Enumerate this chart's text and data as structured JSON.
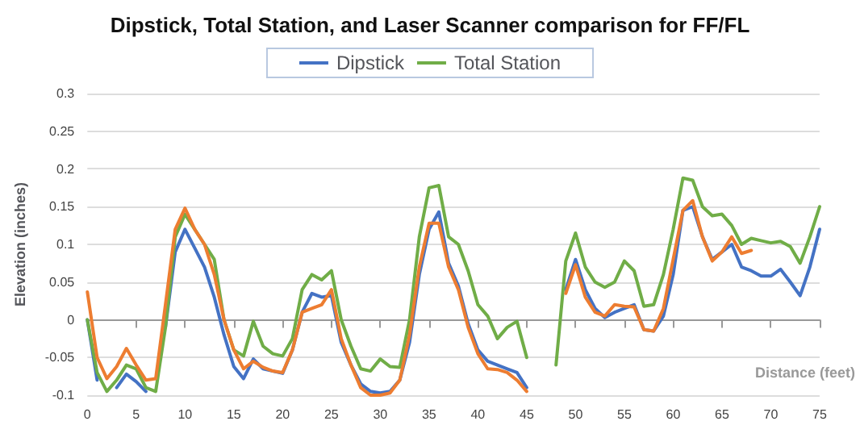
{
  "chart_data": {
    "type": "line",
    "title": "Dipstick, Total Station, and Laser Scanner comparison for FF/FL",
    "xlabel": "Distance (feet)",
    "ylabel": "Elevation (inches)",
    "x": [
      0,
      1,
      2,
      3,
      4,
      5,
      6,
      7,
      8,
      9,
      10,
      11,
      12,
      13,
      14,
      15,
      16,
      17,
      18,
      19,
      20,
      21,
      22,
      23,
      24,
      25,
      26,
      27,
      28,
      29,
      30,
      31,
      32,
      33,
      34,
      35,
      36,
      37,
      38,
      39,
      40,
      41,
      42,
      43,
      44,
      45,
      46,
      47,
      48,
      49,
      50,
      51,
      52,
      53,
      54,
      55,
      56,
      57,
      58,
      59,
      60,
      61,
      62,
      63,
      64,
      65,
      66,
      67,
      68,
      69,
      70,
      71,
      72,
      73,
      74,
      75
    ],
    "series": [
      {
        "name": "Dipstick",
        "color": "#4472c4",
        "values": [
          0,
          -0.08,
          null,
          -0.09,
          -0.072,
          -0.082,
          -0.095,
          null,
          -0.01,
          0.09,
          0.12,
          0.095,
          0.07,
          0.03,
          -0.02,
          -0.062,
          -0.078,
          -0.052,
          -0.065,
          -0.068,
          -0.071,
          -0.04,
          0.01,
          0.035,
          0.03,
          0.032,
          -0.03,
          -0.06,
          -0.085,
          -0.095,
          -0.097,
          -0.095,
          -0.08,
          -0.03,
          0.06,
          0.12,
          0.143,
          0.075,
          0.045,
          -0.005,
          -0.04,
          -0.055,
          -0.06,
          -0.065,
          -0.07,
          -0.09,
          null,
          null,
          null,
          0.04,
          0.08,
          0.04,
          0.015,
          0.003,
          0.01,
          0.015,
          0.02,
          -0.013,
          -0.015,
          0.005,
          0.06,
          0.145,
          0.15,
          0.11,
          0.08,
          0.09,
          0.1,
          0.07,
          0.065,
          0.058,
          0.058,
          0.067,
          0.05,
          0.032,
          0.07,
          0.12
        ]
      },
      {
        "name": "Total Station",
        "color": "#70ad47",
        "values": [
          0,
          -0.07,
          -0.095,
          -0.08,
          -0.06,
          -0.065,
          -0.09,
          -0.095,
          -0.01,
          0.11,
          0.14,
          0.12,
          0.1,
          0.08,
          0,
          -0.04,
          -0.048,
          -0.002,
          -0.035,
          -0.045,
          -0.048,
          -0.025,
          0.04,
          0.06,
          0.053,
          0.065,
          0,
          -0.035,
          -0.065,
          -0.068,
          -0.052,
          -0.062,
          -0.063,
          0,
          0.11,
          0.175,
          0.178,
          0.11,
          0.1,
          0.065,
          0.02,
          0.005,
          -0.025,
          -0.01,
          -0.002,
          -0.05,
          null,
          null,
          -0.06,
          0.078,
          0.115,
          0.07,
          0.05,
          0.043,
          0.05,
          0.078,
          0.065,
          0.018,
          0.02,
          0.06,
          0.12,
          0.188,
          0.185,
          0.15,
          0.138,
          0.14,
          0.125,
          0.1,
          0.108,
          0.105,
          0.102,
          0.104,
          0.097,
          0.075,
          0.11,
          0.15
        ]
      },
      {
        "color": "#ed7d31",
        "values": [
          0.037,
          -0.05,
          -0.078,
          -0.062,
          -0.038,
          -0.06,
          -0.08,
          -0.078,
          0.02,
          0.12,
          0.148,
          0.12,
          0.1,
          0.06,
          0,
          -0.04,
          -0.065,
          -0.055,
          -0.063,
          -0.068,
          -0.07,
          -0.04,
          0.01,
          0.015,
          0.02,
          0.04,
          -0.025,
          -0.06,
          -0.09,
          -0.1,
          -0.1,
          -0.097,
          -0.08,
          -0.02,
          0.07,
          0.128,
          0.128,
          0.07,
          0.04,
          -0.01,
          -0.045,
          -0.065,
          -0.066,
          -0.07,
          -0.08,
          -0.095,
          null,
          null,
          null,
          0.035,
          0.073,
          0.03,
          0.01,
          0.005,
          0.02,
          0.018,
          0.017,
          -0.013,
          -0.015,
          0.015,
          0.08,
          0.145,
          0.158,
          0.11,
          0.078,
          0.09,
          0.11,
          0.088,
          0.092,
          null,
          null,
          null,
          null,
          null,
          null,
          null
        ]
      }
    ],
    "xlim": [
      0,
      75
    ],
    "xticks": [
      0,
      5,
      10,
      15,
      20,
      25,
      30,
      35,
      40,
      45,
      50,
      55,
      60,
      65,
      70,
      75
    ],
    "ylim": [
      -0.1,
      0.3
    ],
    "yticks": [
      -0.1,
      -0.05,
      0,
      0.05,
      0.1,
      0.15,
      0.2,
      0.25,
      0.3
    ],
    "grid": "y",
    "legend": "top",
    "marker": "none",
    "line_style": "solid"
  }
}
